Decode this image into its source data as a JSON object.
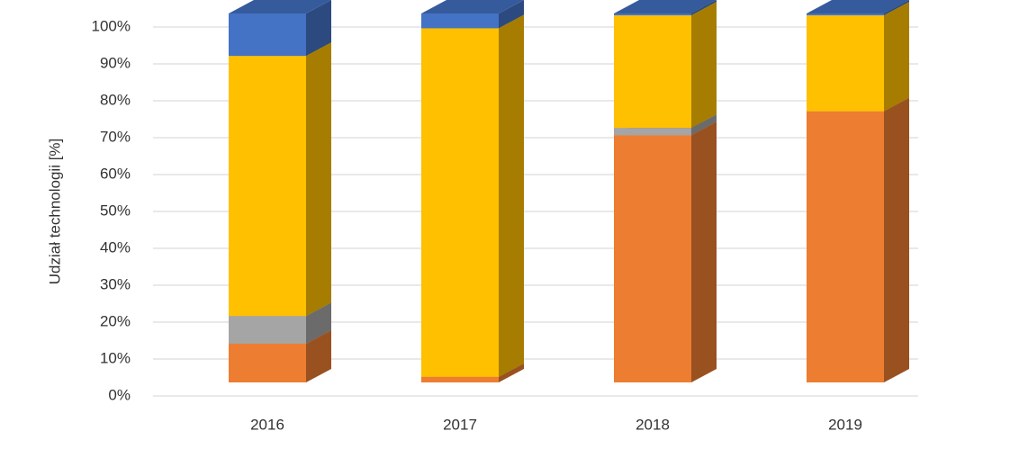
{
  "chart_data": {
    "type": "bar3d_stacked",
    "y_label": "Udział technologii  [%]",
    "categories": [
      "2016",
      "2017",
      "2018",
      "2019"
    ],
    "series": [
      {
        "color": "#ed7d31",
        "values": [
          10.5,
          1.5,
          67,
          73.5
        ]
      },
      {
        "color": "#a5a5a5",
        "values": [
          7.5,
          0,
          2,
          0
        ]
      },
      {
        "color": "#ffc000",
        "values": [
          70.5,
          94.5,
          30.5,
          26
        ]
      },
      {
        "color": "#4472c4",
        "values": [
          11.5,
          4,
          0.5,
          0.5
        ]
      }
    ],
    "ylim": [
      0,
      100
    ],
    "yticks": [
      {
        "value": 0,
        "label": "0%"
      },
      {
        "value": 10,
        "label": "10%"
      },
      {
        "value": 20,
        "label": "20%"
      },
      {
        "value": 30,
        "label": "30%"
      },
      {
        "value": 40,
        "label": "40%"
      },
      {
        "value": 50,
        "label": "50%"
      },
      {
        "value": 60,
        "label": "60%"
      },
      {
        "value": 70,
        "label": "70%"
      },
      {
        "value": 80,
        "label": "80%"
      },
      {
        "value": 90,
        "label": "90%"
      },
      {
        "value": 100,
        "label": "100%"
      }
    ],
    "grid": true
  }
}
